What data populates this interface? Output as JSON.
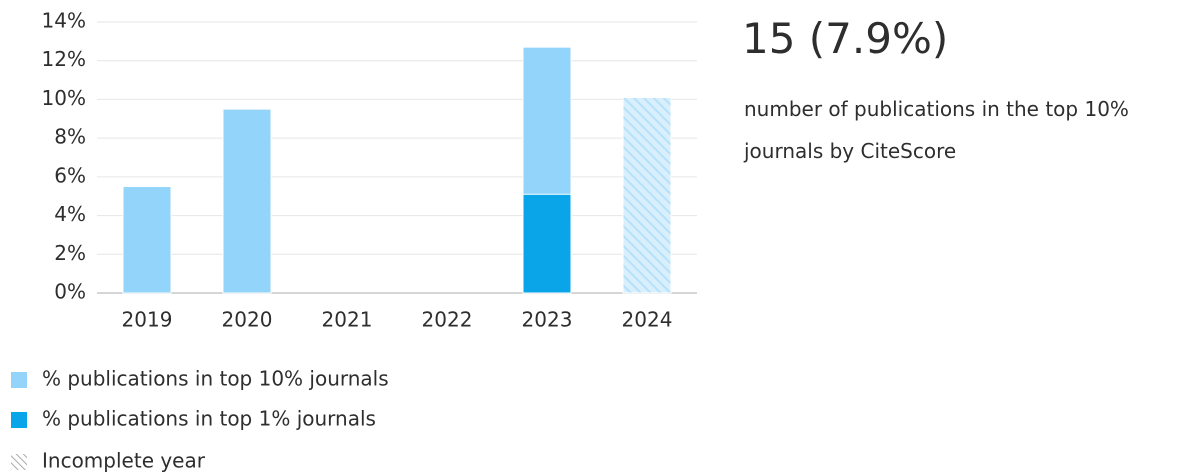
{
  "chart_data": {
    "type": "bar",
    "categories": [
      "2019",
      "2020",
      "2021",
      "2022",
      "2023",
      "2024"
    ],
    "series": [
      {
        "name": "% publications in top 10% journals",
        "color": "#93d4fb",
        "values": [
          5.5,
          9.5,
          0,
          0,
          12.7,
          10.1
        ]
      },
      {
        "name": "% publications in top 1% journals",
        "color": "#0aa5e8",
        "values": [
          0,
          0,
          0,
          0,
          5.1,
          0
        ]
      }
    ],
    "incomplete": [
      false,
      false,
      false,
      false,
      false,
      true
    ],
    "incomplete_label": "Incomplete year",
    "ylim": [
      0,
      14
    ],
    "yticks": [
      {
        "value": 0,
        "label": "0%"
      },
      {
        "value": 2,
        "label": "2%"
      },
      {
        "value": 4,
        "label": "4%"
      },
      {
        "value": 6,
        "label": "6%"
      },
      {
        "value": 8,
        "label": "8%"
      },
      {
        "value": 10,
        "label": "10%"
      },
      {
        "value": 12,
        "label": "12%"
      },
      {
        "value": 14,
        "label": "14%"
      }
    ],
    "grid": true
  },
  "summary": {
    "value": "15 (7.9%)",
    "description": "number of publications in the top 10% journals by CiteScore"
  }
}
